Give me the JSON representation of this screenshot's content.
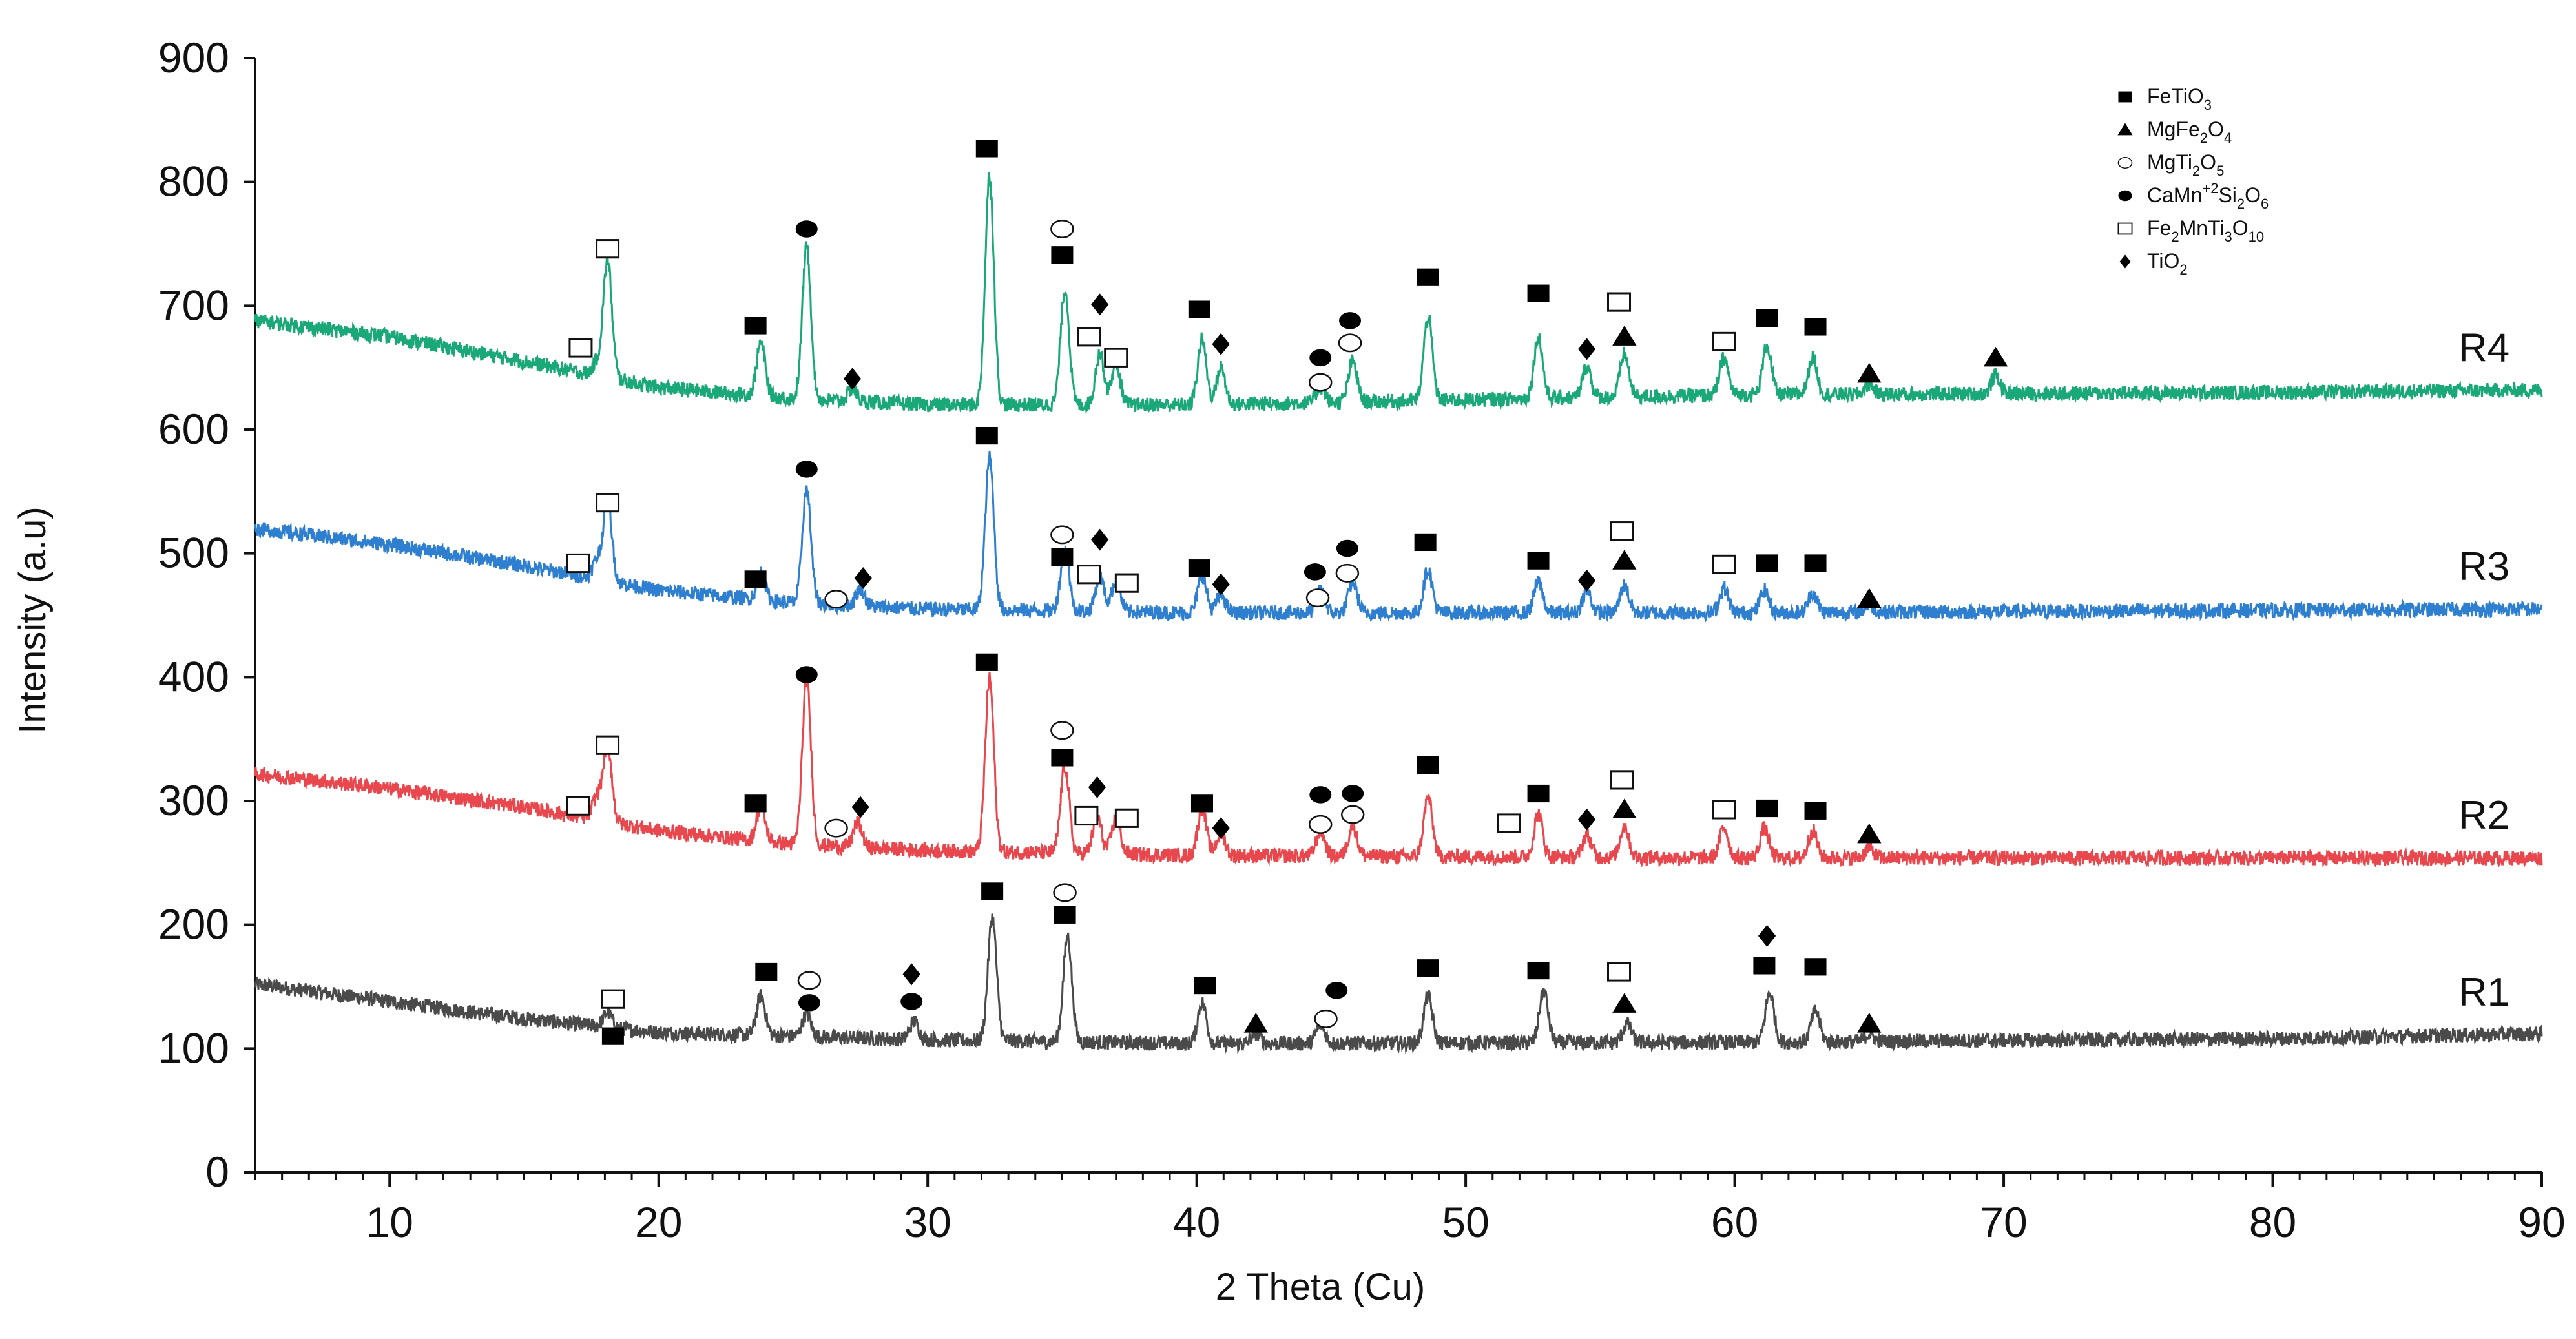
{
  "chart_data": {
    "type": "line",
    "title": "",
    "xlabel": "2 Theta (Cu)",
    "ylabel": "Intensity (a.u)",
    "xlim": [
      5,
      90
    ],
    "ylim": [
      0,
      900
    ],
    "xticks": [
      10,
      20,
      30,
      40,
      50,
      60,
      70,
      80,
      90
    ],
    "yticks": [
      0,
      100,
      200,
      300,
      400,
      500,
      600,
      700,
      800,
      900
    ],
    "grid": false,
    "legend_position": "top-right",
    "phases": [
      {
        "key": "filled-square",
        "label": "FeTiO",
        "sub": "3"
      },
      {
        "key": "filled-triangle",
        "label": "MgFe",
        "sub": "2",
        "label2": "O",
        "sub2": "4"
      },
      {
        "key": "open-circle",
        "label": "MgTi",
        "sub": "2",
        "label2": "O",
        "sub2": "5"
      },
      {
        "key": "filled-circle",
        "label": "CaMn",
        "sup": "+2",
        "label2": "Si",
        "sub2": "2",
        "label3": "O",
        "sub3": "6"
      },
      {
        "key": "open-square",
        "label": "Fe",
        "sub": "2",
        "label2": "MnTi",
        "sub2": "3",
        "label3": "O",
        "sub3": "10"
      },
      {
        "key": "filled-diamond",
        "label": "TiO",
        "sub": "2"
      }
    ],
    "series": [
      {
        "name": "R1",
        "color": "#4a4a4a",
        "baseline": [
          [
            5,
            152
          ],
          [
            10,
            138
          ],
          [
            15,
            124
          ],
          [
            20,
            113
          ],
          [
            30,
            107
          ],
          [
            40,
            104
          ],
          [
            60,
            105
          ],
          [
            80,
            108
          ],
          [
            90,
            112
          ]
        ],
        "peaks": [
          [
            18.1,
            12
          ],
          [
            23.8,
            32
          ],
          [
            25.5,
            18
          ],
          [
            29.5,
            15
          ],
          [
            32.4,
            100
          ],
          [
            35.2,
            85
          ],
          [
            40.2,
            33
          ],
          [
            42.2,
            8
          ],
          [
            44.6,
            15
          ],
          [
            48.6,
            38
          ],
          [
            52.9,
            42
          ],
          [
            56.0,
            15
          ],
          [
            61.3,
            40
          ],
          [
            63.0,
            25
          ],
          [
            65.0,
            6
          ]
        ],
        "markers": [
          {
            "x": 18.3,
            "y": 140,
            "m": "open-square"
          },
          {
            "x": 18.3,
            "y": 110,
            "m": "filled-square"
          },
          {
            "x": 24.0,
            "y": 162,
            "m": "filled-square"
          },
          {
            "x": 25.6,
            "y": 155,
            "m": "open-circle"
          },
          {
            "x": 25.6,
            "y": 137,
            "m": "filled-circle"
          },
          {
            "x": 29.4,
            "y": 160,
            "m": "filled-diamond"
          },
          {
            "x": 29.4,
            "y": 138,
            "m": "filled-circle"
          },
          {
            "x": 32.4,
            "y": 227,
            "m": "filled-square"
          },
          {
            "x": 35.1,
            "y": 226,
            "m": "open-circle"
          },
          {
            "x": 35.1,
            "y": 208,
            "m": "filled-square"
          },
          {
            "x": 40.3,
            "y": 151,
            "m": "filled-square"
          },
          {
            "x": 42.2,
            "y": 120,
            "m": "filled-triangle"
          },
          {
            "x": 45.2,
            "y": 147,
            "m": "filled-circle"
          },
          {
            "x": 44.8,
            "y": 124,
            "m": "open-circle"
          },
          {
            "x": 48.6,
            "y": 165,
            "m": "filled-square"
          },
          {
            "x": 52.7,
            "y": 163,
            "m": "filled-square"
          },
          {
            "x": 55.7,
            "y": 162,
            "m": "open-square"
          },
          {
            "x": 55.9,
            "y": 136,
            "m": "filled-triangle"
          },
          {
            "x": 61.2,
            "y": 191,
            "m": "filled-diamond"
          },
          {
            "x": 61.1,
            "y": 167,
            "m": "filled-square"
          },
          {
            "x": 63.0,
            "y": 166,
            "m": "filled-square"
          },
          {
            "x": 65.0,
            "y": 120,
            "m": "filled-triangle"
          }
        ]
      },
      {
        "name": "R2",
        "color": "#e8474d",
        "baseline": [
          [
            5,
            322
          ],
          [
            10,
            310
          ],
          [
            15,
            295
          ],
          [
            20,
            276
          ],
          [
            25,
            265
          ],
          [
            30,
            260
          ],
          [
            40,
            256
          ],
          [
            60,
            254
          ],
          [
            80,
            254
          ],
          [
            90,
            254
          ]
        ],
        "peaks": [
          [
            17.7,
            18
          ],
          [
            18.1,
            62
          ],
          [
            23.8,
            28
          ],
          [
            25.5,
            133
          ],
          [
            27.4,
            20
          ],
          [
            32.3,
            140
          ],
          [
            35.1,
            70
          ],
          [
            36.3,
            30
          ],
          [
            37.0,
            28
          ],
          [
            40.2,
            38
          ],
          [
            40.9,
            18
          ],
          [
            44.6,
            20
          ],
          [
            45.8,
            25
          ],
          [
            48.6,
            48
          ],
          [
            52.7,
            35
          ],
          [
            54.5,
            18
          ],
          [
            55.9,
            26
          ],
          [
            59.6,
            25
          ],
          [
            61.1,
            24
          ],
          [
            62.9,
            22
          ],
          [
            65.0,
            8
          ]
        ],
        "markers": [
          {
            "x": 18.1,
            "y": 345,
            "m": "open-square"
          },
          {
            "x": 17.0,
            "y": 296,
            "m": "open-square"
          },
          {
            "x": 23.6,
            "y": 298,
            "m": "filled-square"
          },
          {
            "x": 25.5,
            "y": 402,
            "m": "filled-circle"
          },
          {
            "x": 27.5,
            "y": 295,
            "m": "filled-diamond"
          },
          {
            "x": 26.6,
            "y": 278,
            "m": "open-circle"
          },
          {
            "x": 32.2,
            "y": 412,
            "m": "filled-square"
          },
          {
            "x": 35.0,
            "y": 357,
            "m": "open-circle"
          },
          {
            "x": 35.0,
            "y": 335,
            "m": "filled-square"
          },
          {
            "x": 36.3,
            "y": 311,
            "m": "filled-diamond"
          },
          {
            "x": 35.9,
            "y": 288,
            "m": "open-square"
          },
          {
            "x": 37.4,
            "y": 286,
            "m": "open-square"
          },
          {
            "x": 40.2,
            "y": 298,
            "m": "filled-square"
          },
          {
            "x": 40.9,
            "y": 278,
            "m": "filled-diamond"
          },
          {
            "x": 44.6,
            "y": 305,
            "m": "filled-circle"
          },
          {
            "x": 44.6,
            "y": 281,
            "m": "open-circle"
          },
          {
            "x": 45.8,
            "y": 306,
            "m": "filled-circle"
          },
          {
            "x": 45.8,
            "y": 289,
            "m": "open-circle"
          },
          {
            "x": 48.6,
            "y": 329,
            "m": "filled-square"
          },
          {
            "x": 51.6,
            "y": 282,
            "m": "open-square"
          },
          {
            "x": 52.7,
            "y": 306,
            "m": "filled-square"
          },
          {
            "x": 54.5,
            "y": 285,
            "m": "filled-diamond"
          },
          {
            "x": 55.8,
            "y": 317,
            "m": "open-square"
          },
          {
            "x": 55.9,
            "y": 293,
            "m": "filled-triangle"
          },
          {
            "x": 59.6,
            "y": 293,
            "m": "open-square"
          },
          {
            "x": 61.2,
            "y": 294,
            "m": "filled-square"
          },
          {
            "x": 63.0,
            "y": 292,
            "m": "filled-square"
          },
          {
            "x": 65.0,
            "y": 273,
            "m": "filled-triangle"
          }
        ]
      },
      {
        "name": "R3",
        "color": "#2e7fcf",
        "baseline": [
          [
            5,
            520
          ],
          [
            10,
            507
          ],
          [
            15,
            490
          ],
          [
            20,
            470
          ],
          [
            25,
            460
          ],
          [
            30,
            455
          ],
          [
            40,
            452
          ],
          [
            60,
            452
          ],
          [
            80,
            454
          ],
          [
            90,
            455
          ]
        ],
        "peaks": [
          [
            17.7,
            15
          ],
          [
            18.1,
            65
          ],
          [
            23.8,
            22
          ],
          [
            25.5,
            92
          ],
          [
            27.5,
            14
          ],
          [
            32.3,
            123
          ],
          [
            35.1,
            50
          ],
          [
            36.4,
            28
          ],
          [
            37.0,
            25
          ],
          [
            40.2,
            30
          ],
          [
            40.9,
            15
          ],
          [
            44.6,
            18
          ],
          [
            45.8,
            25
          ],
          [
            48.6,
            35
          ],
          [
            52.7,
            25
          ],
          [
            54.5,
            18
          ],
          [
            55.9,
            22
          ],
          [
            59.6,
            20
          ],
          [
            61.1,
            18
          ],
          [
            62.9,
            16
          ],
          [
            65.0,
            6
          ]
        ],
        "markers": [
          {
            "x": 18.1,
            "y": 541,
            "m": "open-square"
          },
          {
            "x": 17.0,
            "y": 492,
            "m": "open-square"
          },
          {
            "x": 23.6,
            "y": 479,
            "m": "filled-square"
          },
          {
            "x": 25.5,
            "y": 568,
            "m": "filled-circle"
          },
          {
            "x": 27.6,
            "y": 480,
            "m": "filled-diamond"
          },
          {
            "x": 26.6,
            "y": 463,
            "m": "open-circle"
          },
          {
            "x": 32.2,
            "y": 595,
            "m": "filled-square"
          },
          {
            "x": 35.0,
            "y": 515,
            "m": "open-circle"
          },
          {
            "x": 35.0,
            "y": 497,
            "m": "filled-square"
          },
          {
            "x": 36.4,
            "y": 511,
            "m": "filled-diamond"
          },
          {
            "x": 36.0,
            "y": 483,
            "m": "open-square"
          },
          {
            "x": 37.4,
            "y": 476,
            "m": "open-square"
          },
          {
            "x": 40.1,
            "y": 488,
            "m": "filled-square"
          },
          {
            "x": 40.9,
            "y": 475,
            "m": "filled-diamond"
          },
          {
            "x": 44.4,
            "y": 485,
            "m": "filled-circle"
          },
          {
            "x": 44.5,
            "y": 464,
            "m": "open-circle"
          },
          {
            "x": 45.6,
            "y": 504,
            "m": "filled-circle"
          },
          {
            "x": 45.6,
            "y": 484,
            "m": "open-circle"
          },
          {
            "x": 48.5,
            "y": 509,
            "m": "filled-square"
          },
          {
            "x": 52.7,
            "y": 494,
            "m": "filled-square"
          },
          {
            "x": 54.5,
            "y": 478,
            "m": "filled-diamond"
          },
          {
            "x": 55.8,
            "y": 518,
            "m": "open-square"
          },
          {
            "x": 55.9,
            "y": 494,
            "m": "filled-triangle"
          },
          {
            "x": 59.6,
            "y": 491,
            "m": "open-square"
          },
          {
            "x": 61.2,
            "y": 492,
            "m": "filled-square"
          },
          {
            "x": 63.0,
            "y": 492,
            "m": "filled-square"
          },
          {
            "x": 65.0,
            "y": 463,
            "m": "filled-triangle"
          }
        ]
      },
      {
        "name": "R4",
        "color": "#1aa879",
        "baseline": [
          [
            5,
            688
          ],
          [
            10,
            675
          ],
          [
            15,
            655
          ],
          [
            20,
            634
          ],
          [
            25,
            625
          ],
          [
            30,
            620
          ],
          [
            40,
            620
          ],
          [
            60,
            628
          ],
          [
            80,
            630
          ],
          [
            90,
            632
          ]
        ],
        "peaks": [
          [
            17.7,
            10
          ],
          [
            18.1,
            95
          ],
          [
            23.8,
            43
          ],
          [
            25.5,
            123
          ],
          [
            27.2,
            10
          ],
          [
            32.3,
            185
          ],
          [
            35.1,
            93
          ],
          [
            36.4,
            42
          ],
          [
            37.0,
            33
          ],
          [
            40.2,
            53
          ],
          [
            40.9,
            30
          ],
          [
            44.6,
            12
          ],
          [
            45.8,
            33
          ],
          [
            48.6,
            68
          ],
          [
            52.7,
            50
          ],
          [
            54.5,
            25
          ],
          [
            55.9,
            35
          ],
          [
            59.6,
            30
          ],
          [
            61.2,
            40
          ],
          [
            62.9,
            30
          ],
          [
            65.0,
            8
          ],
          [
            69.7,
            15
          ]
        ],
        "markers": [
          {
            "x": 18.1,
            "y": 746,
            "m": "open-square"
          },
          {
            "x": 17.1,
            "y": 666,
            "m": "open-square"
          },
          {
            "x": 23.6,
            "y": 684,
            "m": "filled-square"
          },
          {
            "x": 25.5,
            "y": 762,
            "m": "filled-circle"
          },
          {
            "x": 27.2,
            "y": 641,
            "m": "filled-diamond"
          },
          {
            "x": 32.2,
            "y": 827,
            "m": "filled-square"
          },
          {
            "x": 35.0,
            "y": 762,
            "m": "open-circle"
          },
          {
            "x": 35.0,
            "y": 741,
            "m": "filled-square"
          },
          {
            "x": 36.4,
            "y": 701,
            "m": "filled-diamond"
          },
          {
            "x": 36.0,
            "y": 675,
            "m": "open-square"
          },
          {
            "x": 37.0,
            "y": 658,
            "m": "open-square"
          },
          {
            "x": 40.1,
            "y": 697,
            "m": "filled-square"
          },
          {
            "x": 40.9,
            "y": 669,
            "m": "filled-diamond"
          },
          {
            "x": 44.6,
            "y": 658,
            "m": "filled-circle"
          },
          {
            "x": 44.6,
            "y": 638,
            "m": "open-circle"
          },
          {
            "x": 45.7,
            "y": 688,
            "m": "filled-circle"
          },
          {
            "x": 45.7,
            "y": 670,
            "m": "open-circle"
          },
          {
            "x": 48.6,
            "y": 723,
            "m": "filled-square"
          },
          {
            "x": 52.7,
            "y": 710,
            "m": "filled-square"
          },
          {
            "x": 54.5,
            "y": 665,
            "m": "filled-diamond"
          },
          {
            "x": 55.7,
            "y": 703,
            "m": "open-square"
          },
          {
            "x": 55.9,
            "y": 675,
            "m": "filled-triangle"
          },
          {
            "x": 59.6,
            "y": 671,
            "m": "open-square"
          },
          {
            "x": 61.2,
            "y": 690,
            "m": "filled-square"
          },
          {
            "x": 63.0,
            "y": 683,
            "m": "filled-square"
          },
          {
            "x": 65.0,
            "y": 645,
            "m": "filled-triangle"
          },
          {
            "x": 69.7,
            "y": 658,
            "m": "filled-triangle"
          }
        ]
      }
    ]
  }
}
